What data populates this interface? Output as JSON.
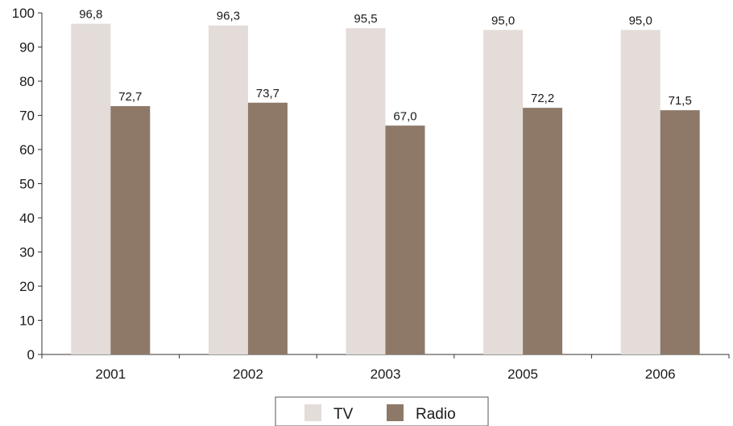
{
  "chart_data": {
    "type": "bar",
    "categories": [
      "2001",
      "2002",
      "2003",
      "2005",
      "2006"
    ],
    "series": [
      {
        "name": "TV",
        "values": [
          96.8,
          96.3,
          95.5,
          95.0,
          95.0
        ],
        "labels": [
          "96,8",
          "96,3",
          "95,5",
          "95,0",
          "95,0"
        ],
        "color": "#e3dcd8"
      },
      {
        "name": "Radio",
        "values": [
          72.7,
          73.7,
          67.0,
          72.2,
          71.5
        ],
        "labels": [
          "72,7",
          "73,7",
          "67,0",
          "72,2",
          "71,5"
        ],
        "color": "#8e7968"
      }
    ],
    "title": "",
    "xlabel": "",
    "ylabel": "",
    "ylim": [
      0,
      100
    ],
    "yticks": [
      "0",
      "10",
      "20",
      "30",
      "40",
      "50",
      "60",
      "70",
      "80",
      "90",
      "100"
    ],
    "grid": false,
    "legend": "bottom-center"
  }
}
